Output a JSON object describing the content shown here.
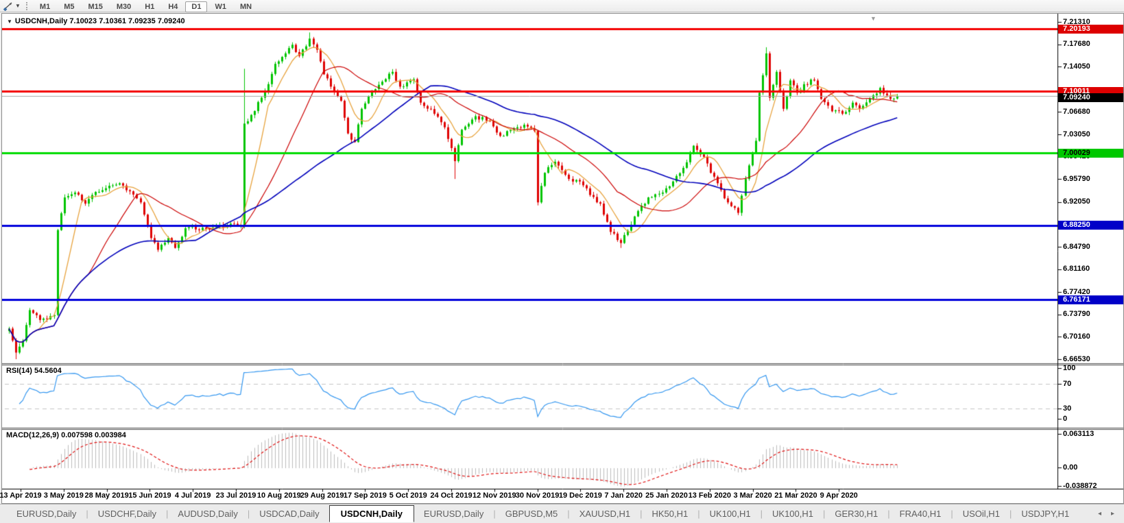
{
  "toolbar": {
    "tool_icon": "drawing-arrow-tool-icon",
    "timeframes": [
      "M1",
      "M5",
      "M15",
      "M30",
      "H1",
      "H4",
      "D1",
      "W1",
      "MN"
    ],
    "active_timeframe": "D1"
  },
  "chart": {
    "title": {
      "symbol": "USDCNH,Daily",
      "ohlc": "7.10023 7.10361 7.09235 7.09240"
    },
    "price_axis_ticks": [
      "7.21310",
      "7.17680",
      "7.14050",
      "7.06680",
      "7.03050",
      "6.99420",
      "6.95790",
      "6.92050",
      "6.84790",
      "6.81160",
      "6.77420",
      "6.73790",
      "6.70160",
      "6.66530"
    ],
    "hlines": [
      {
        "price": 7.20193,
        "label": "7.20193",
        "line_color": "#f40000",
        "thickness": 3,
        "tag_bg": "#dd0000",
        "tag_fg": "#ffffff"
      },
      {
        "price": 7.10011,
        "label": "7.10011",
        "line_color": "#f40000",
        "thickness": 3,
        "tag_bg": "#dd0000",
        "tag_fg": "#ffffff"
      },
      {
        "price": 7.00029,
        "label": "7.00029",
        "line_color": "#00dc00",
        "thickness": 3,
        "tag_bg": "#00c800",
        "tag_fg": "#000000"
      },
      {
        "price": 6.8825,
        "label": "6.88250",
        "line_color": "#0000dc",
        "thickness": 3,
        "tag_bg": "#0000c8",
        "tag_fg": "#ffffff"
      },
      {
        "price": 6.76171,
        "label": "6.76171",
        "line_color": "#0000dc",
        "thickness": 3,
        "tag_bg": "#0000c8",
        "tag_fg": "#ffffff"
      }
    ],
    "current_price": {
      "price": 7.0924,
      "label": "7.09240",
      "line_color": "#a8a8a8",
      "tag_bg": "#000000",
      "tag_fg": "#ffffff"
    }
  },
  "chart_data": {
    "type": "candlestick",
    "symbol": "USDCNH",
    "timeframe": "Daily",
    "title": "USDCNH,Daily",
    "price_range": {
      "top": 7.2131,
      "bottom": 6.6653
    },
    "x_axis_dates": [
      "13 Apr 2019",
      "3 May 2019",
      "28 May 2019",
      "15 Jun 2019",
      "4 Jul 2019",
      "23 Jul 2019",
      "10 Aug 2019",
      "29 Aug 2019",
      "17 Sep 2019",
      "5 Oct 2019",
      "24 Oct 2019",
      "12 Nov 2019",
      "30 Nov 2019",
      "19 Dec 2019",
      "7 Jan 2020",
      "25 Jan 2020",
      "13 Feb 2020",
      "3 Mar 2020",
      "21 Mar 2020",
      "9 Apr 2020"
    ],
    "candle_count": 258,
    "up_color": "#00c400",
    "down_color": "#df0202",
    "close_path_anchors": [
      [
        0,
        6.715
      ],
      [
        2,
        6.676
      ],
      [
        4,
        6.695
      ],
      [
        6,
        6.745
      ],
      [
        9,
        6.729
      ],
      [
        13,
        6.737
      ],
      [
        14,
        6.875
      ],
      [
        16,
        6.928
      ],
      [
        19,
        6.936
      ],
      [
        22,
        6.918
      ],
      [
        25,
        6.937
      ],
      [
        29,
        6.947
      ],
      [
        32,
        6.951
      ],
      [
        35,
        6.938
      ],
      [
        38,
        6.92
      ],
      [
        41,
        6.862
      ],
      [
        43,
        6.843
      ],
      [
        46,
        6.862
      ],
      [
        48,
        6.846
      ],
      [
        51,
        6.878
      ],
      [
        57,
        6.877
      ],
      [
        63,
        6.883
      ],
      [
        67,
        6.883
      ],
      [
        68,
        7.048
      ],
      [
        70,
        7.062
      ],
      [
        73,
        7.09
      ],
      [
        75,
        7.112
      ],
      [
        77,
        7.145
      ],
      [
        80,
        7.162
      ],
      [
        82,
        7.176
      ],
      [
        84,
        7.158
      ],
      [
        87,
        7.186
      ],
      [
        89,
        7.168
      ],
      [
        91,
        7.128
      ],
      [
        93,
        7.108
      ],
      [
        96,
        7.085
      ],
      [
        98,
        7.032
      ],
      [
        100,
        7.018
      ],
      [
        102,
        7.072
      ],
      [
        105,
        7.1
      ],
      [
        108,
        7.116
      ],
      [
        111,
        7.132
      ],
      [
        113,
        7.108
      ],
      [
        117,
        7.12
      ],
      [
        119,
        7.082
      ],
      [
        123,
        7.064
      ],
      [
        126,
        7.042
      ],
      [
        129,
        6.987
      ],
      [
        131,
        7.038
      ],
      [
        135,
        7.06
      ],
      [
        139,
        7.052
      ],
      [
        142,
        7.028
      ],
      [
        146,
        7.04
      ],
      [
        149,
        7.046
      ],
      [
        152,
        7.036
      ],
      [
        153,
        6.92
      ],
      [
        155,
        6.968
      ],
      [
        158,
        6.986
      ],
      [
        162,
        6.958
      ],
      [
        165,
        6.954
      ],
      [
        168,
        6.932
      ],
      [
        171,
        6.918
      ],
      [
        174,
        6.872
      ],
      [
        177,
        6.854
      ],
      [
        179,
        6.874
      ],
      [
        182,
        6.906
      ],
      [
        185,
        6.928
      ],
      [
        189,
        6.936
      ],
      [
        192,
        6.954
      ],
      [
        195,
        6.976
      ],
      [
        198,
        7.012
      ],
      [
        201,
        6.994
      ],
      [
        203,
        6.968
      ],
      [
        206,
        6.94
      ],
      [
        208,
        6.92
      ],
      [
        211,
        6.903
      ],
      [
        213,
        6.958
      ],
      [
        216,
        7.02
      ],
      [
        217,
        7.098
      ],
      [
        219,
        7.162
      ],
      [
        220,
        7.09
      ],
      [
        222,
        7.132
      ],
      [
        224,
        7.072
      ],
      [
        226,
        7.118
      ],
      [
        228,
        7.098
      ],
      [
        230,
        7.112
      ],
      [
        233,
        7.118
      ],
      [
        235,
        7.088
      ],
      [
        238,
        7.068
      ],
      [
        241,
        7.064
      ],
      [
        244,
        7.082
      ],
      [
        246,
        7.072
      ],
      [
        250,
        7.094
      ],
      [
        252,
        7.106
      ],
      [
        255,
        7.088
      ],
      [
        257,
        7.0924
      ]
    ],
    "special_wicks": [
      {
        "index": 2,
        "low": 6.6653
      },
      {
        "index": 68,
        "high": 7.137
      },
      {
        "index": 87,
        "high": 7.196
      },
      {
        "index": 129,
        "low": 6.958
      },
      {
        "index": 177,
        "low": 6.846
      },
      {
        "index": 219,
        "high": 7.172
      }
    ],
    "moving_averages": [
      {
        "period": 8,
        "color": "#e8a33d",
        "width": 1.3
      },
      {
        "period": 24,
        "color": "#cc0000",
        "width": 1.2
      },
      {
        "period": 55,
        "color": "#0000bb",
        "width": 1.6
      }
    ],
    "rsi": {
      "label": "RSI(14)",
      "value": "54.5604",
      "period": 14,
      "levels": [
        70,
        30
      ],
      "axis_labels": [
        "100",
        "70",
        "30",
        "0"
      ],
      "line_color": "#3296f0",
      "level_color": "#c4c4c4"
    },
    "macd": {
      "label": "MACD(12,26,9)",
      "values": "0.007598 0.003984",
      "fast": 12,
      "slow": 26,
      "signal": 9,
      "axis_labels": [
        "0.063113",
        "0.00",
        "-0.038872"
      ],
      "axis_max": 0.063113,
      "axis_min": -0.038872,
      "hist_color": "#bcbcbc",
      "signal_color": "#e01010"
    }
  },
  "tabs": {
    "items": [
      "EURUSD,Daily",
      "USDCHF,Daily",
      "AUDUSD,Daily",
      "USDCAD,Daily",
      "USDCNH,Daily",
      "EURUSD,Daily",
      "GBPUSD,M5",
      "XAUUSD,H1",
      "HK50,H1",
      "UK100,H1",
      "UK100,H1",
      "GER30,H1",
      "FRA40,H1",
      "USOil,H1",
      "USDJPY,H1"
    ],
    "active_index": 4,
    "scroll_arrows": [
      "◂",
      "▸"
    ]
  }
}
